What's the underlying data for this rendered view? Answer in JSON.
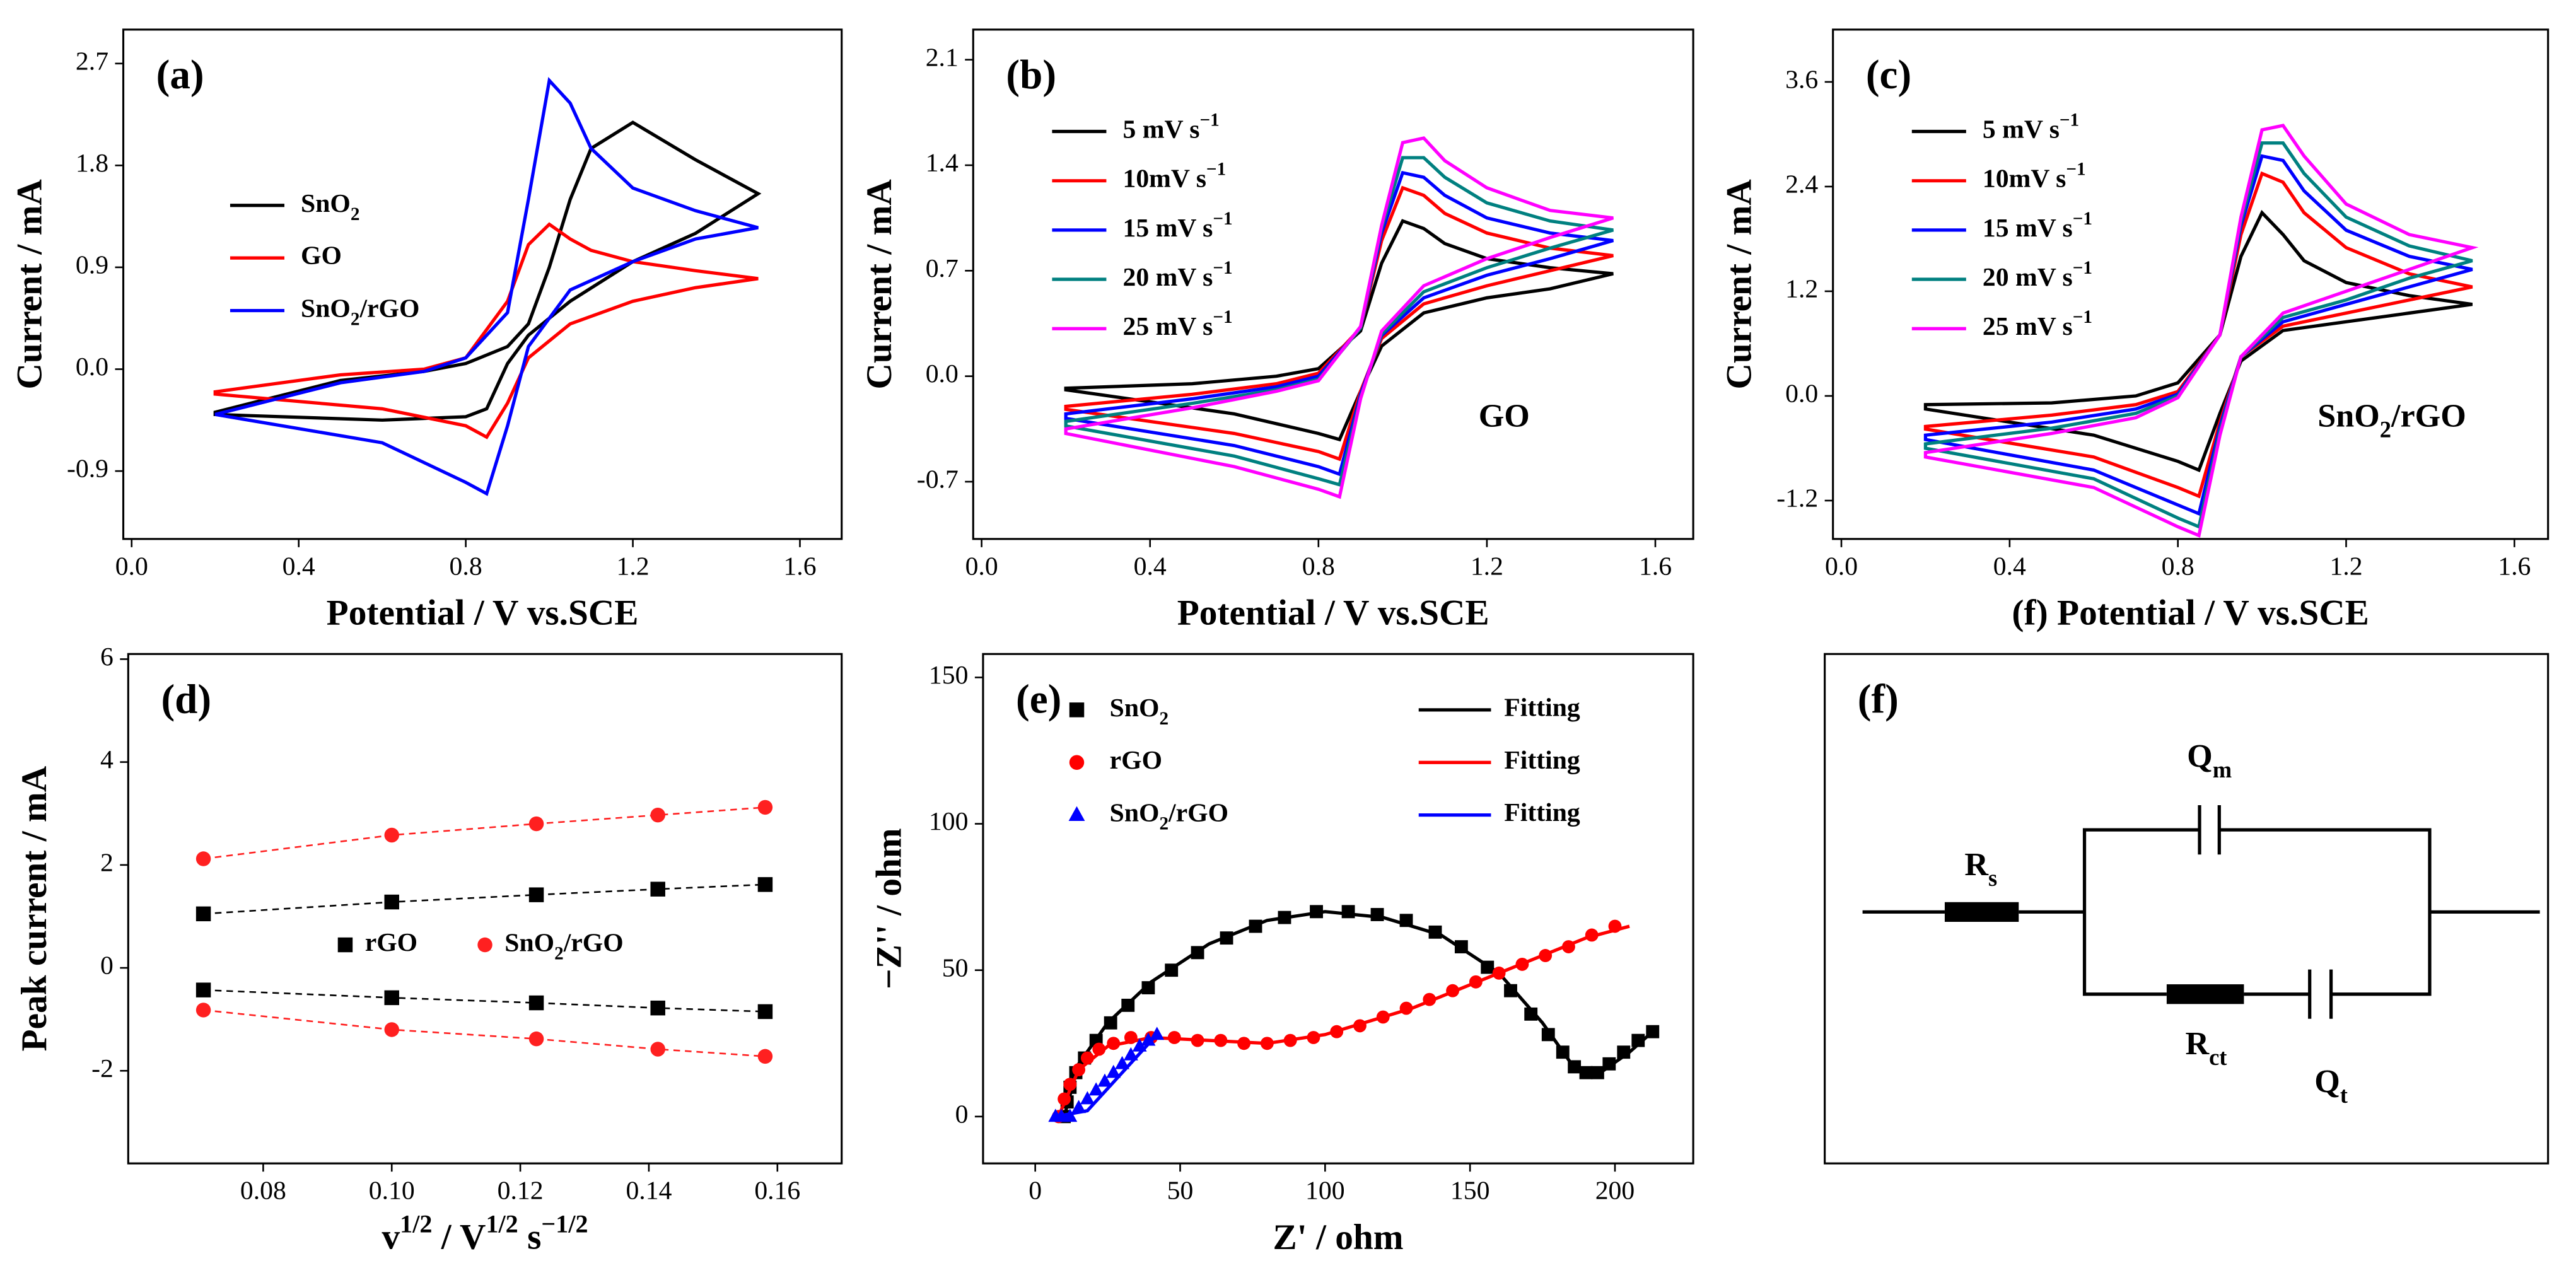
{
  "chart_data": [
    {
      "type": "line",
      "panel_label": "(a)",
      "xlabel": "Potential / V vs.SCE",
      "ylabel": "Current / mA",
      "x": [
        0.2,
        0.5,
        0.7,
        0.8,
        0.9,
        0.95,
        1.0,
        1.05,
        1.1,
        1.2,
        1.35,
        1.5,
        1.35,
        1.2,
        1.05,
        0.95,
        0.9,
        0.85,
        0.8,
        0.6,
        0.2
      ],
      "series": [
        {
          "name": [
            {
              "t": "SnO"
            },
            {
              "sub": "2"
            }
          ],
          "color": "#000000",
          "values": [
            -0.38,
            -0.1,
            -0.02,
            0.05,
            0.2,
            0.4,
            0.9,
            1.5,
            1.95,
            2.18,
            1.85,
            1.55,
            1.2,
            0.95,
            0.6,
            0.3,
            0.05,
            -0.35,
            -0.42,
            -0.45,
            -0.4
          ]
        },
        {
          "name": "GO",
          "color": "#ff0000",
          "values": [
            -0.2,
            -0.05,
            0.0,
            0.1,
            0.6,
            1.1,
            1.28,
            1.15,
            1.05,
            0.95,
            0.87,
            0.8,
            0.72,
            0.6,
            0.4,
            0.1,
            -0.3,
            -0.6,
            -0.5,
            -0.35,
            -0.22
          ]
        },
        {
          "name": [
            {
              "t": "SnO"
            },
            {
              "sub": "2"
            },
            {
              "t": "/rGO"
            }
          ],
          "color": "#0000ff",
          "values": [
            -0.4,
            -0.12,
            -0.02,
            0.1,
            0.5,
            1.5,
            2.55,
            2.35,
            1.95,
            1.6,
            1.4,
            1.25,
            1.15,
            0.95,
            0.7,
            0.2,
            -0.5,
            -1.1,
            -1.0,
            -0.65,
            -0.4
          ]
        }
      ],
      "xlim": [
        -0.02,
        1.7
      ],
      "ylim": [
        -1.5,
        3.0
      ],
      "xticks": [
        {
          "value": 0,
          "label": "0.0"
        },
        0.4,
        0.8,
        1.2,
        1.6
      ],
      "yticks": [
        -0.9,
        {
          "value": 0,
          "label": "0.0"
        },
        0.9,
        1.8,
        2.7
      ]
    },
    {
      "type": "line",
      "panel_label": "(b)",
      "xlabel": "Potential / V vs.SCE",
      "ylabel": "Current / mA",
      "annotation": "GO",
      "x": [
        0.2,
        0.5,
        0.7,
        0.8,
        0.9,
        0.95,
        1.0,
        1.05,
        1.1,
        1.2,
        1.35,
        1.5,
        1.35,
        1.2,
        1.05,
        0.95,
        0.9,
        0.85,
        0.8,
        0.6,
        0.2
      ],
      "series": [
        {
          "name": [
            {
              "t": "5 mV s"
            },
            {
              "sup": "−1"
            }
          ],
          "color": "#000000",
          "values": [
            -0.08,
            -0.05,
            0.0,
            0.05,
            0.3,
            0.75,
            1.03,
            0.98,
            0.88,
            0.78,
            0.72,
            0.68,
            0.58,
            0.52,
            0.42,
            0.2,
            -0.1,
            -0.42,
            -0.38,
            -0.25,
            -0.09
          ]
        },
        {
          "name": [
            {
              "t": "10mV s"
            },
            {
              "sup": "−1"
            }
          ],
          "color": "#ff0000",
          "values": [
            -0.2,
            -0.12,
            -0.05,
            0.02,
            0.32,
            0.9,
            1.25,
            1.2,
            1.08,
            0.95,
            0.85,
            0.8,
            0.7,
            0.6,
            0.48,
            0.25,
            -0.1,
            -0.55,
            -0.5,
            -0.38,
            -0.22
          ]
        },
        {
          "name": [
            {
              "t": "15 mV s"
            },
            {
              "sup": "−1"
            }
          ],
          "color": "#0000ff",
          "values": [
            -0.25,
            -0.15,
            -0.07,
            0.0,
            0.32,
            0.95,
            1.35,
            1.32,
            1.2,
            1.05,
            0.95,
            0.9,
            0.78,
            0.67,
            0.52,
            0.27,
            -0.12,
            -0.65,
            -0.6,
            -0.46,
            -0.28
          ]
        },
        {
          "name": [
            {
              "t": "20 mV s"
            },
            {
              "sup": "−1"
            }
          ],
          "color": "#008080",
          "values": [
            -0.3,
            -0.18,
            -0.09,
            -0.02,
            0.32,
            0.98,
            1.45,
            1.45,
            1.32,
            1.15,
            1.03,
            0.97,
            0.85,
            0.72,
            0.56,
            0.28,
            -0.14,
            -0.72,
            -0.68,
            -0.53,
            -0.33
          ]
        },
        {
          "name": [
            {
              "t": "25 mV s"
            },
            {
              "sup": "−1"
            }
          ],
          "color": "#ff00ff",
          "values": [
            -0.35,
            -0.21,
            -0.1,
            -0.03,
            0.33,
            1.0,
            1.55,
            1.58,
            1.43,
            1.25,
            1.1,
            1.05,
            0.92,
            0.78,
            0.6,
            0.3,
            -0.15,
            -0.8,
            -0.75,
            -0.6,
            -0.38
          ]
        }
      ],
      "xlim": [
        -0.02,
        1.69
      ],
      "ylim": [
        -1.08,
        2.3
      ],
      "xticks": [
        {
          "value": 0,
          "label": "0.0"
        },
        0.4,
        0.8,
        1.2,
        1.6
      ],
      "yticks": [
        -0.7,
        {
          "value": 0,
          "label": "0.0"
        },
        0.7,
        1.4,
        2.1
      ]
    },
    {
      "type": "line",
      "panel_label": "(c)",
      "xlabel": "(f) Potential / V vs.SCE",
      "ylabel": "Current / mA",
      "annotation": [
        {
          "t": "SnO"
        },
        {
          "sub": "2"
        },
        {
          "t": "/rGO"
        }
      ],
      "x": [
        0.2,
        0.5,
        0.7,
        0.8,
        0.9,
        0.95,
        1.0,
        1.05,
        1.1,
        1.2,
        1.35,
        1.5,
        1.35,
        1.2,
        1.05,
        0.95,
        0.9,
        0.85,
        0.8,
        0.6,
        0.2
      ],
      "series": [
        {
          "name": [
            {
              "t": "5 mV s"
            },
            {
              "sup": "−1"
            }
          ],
          "color": "#000000",
          "values": [
            -0.1,
            -0.08,
            0.0,
            0.15,
            0.7,
            1.6,
            2.1,
            1.85,
            1.55,
            1.3,
            1.15,
            1.05,
            0.95,
            0.85,
            0.75,
            0.4,
            -0.2,
            -0.85,
            -0.75,
            -0.45,
            -0.15
          ]
        },
        {
          "name": [
            {
              "t": "10mV s"
            },
            {
              "sup": "−1"
            }
          ],
          "color": "#ff0000",
          "values": [
            -0.35,
            -0.22,
            -0.1,
            0.05,
            0.7,
            1.85,
            2.55,
            2.45,
            2.1,
            1.7,
            1.4,
            1.25,
            1.1,
            0.95,
            0.8,
            0.45,
            -0.3,
            -1.15,
            -1.05,
            -0.7,
            -0.38
          ]
        },
        {
          "name": [
            {
              "t": "15 mV s"
            },
            {
              "sup": "−1"
            }
          ],
          "color": "#0000ff",
          "values": [
            -0.45,
            -0.3,
            -0.15,
            0.02,
            0.7,
            1.95,
            2.75,
            2.7,
            2.35,
            1.9,
            1.6,
            1.45,
            1.25,
            1.05,
            0.85,
            0.45,
            -0.35,
            -1.35,
            -1.25,
            -0.85,
            -0.5
          ]
        },
        {
          "name": [
            {
              "t": "20 mV s"
            },
            {
              "sup": "−1"
            }
          ],
          "color": "#008080",
          "values": [
            -0.55,
            -0.37,
            -0.2,
            0.0,
            0.7,
            2.0,
            2.9,
            2.9,
            2.55,
            2.05,
            1.72,
            1.55,
            1.35,
            1.1,
            0.9,
            0.45,
            -0.4,
            -1.5,
            -1.4,
            -0.95,
            -0.6
          ]
        },
        {
          "name": [
            {
              "t": "25 mV s"
            },
            {
              "sup": "−1"
            }
          ],
          "color": "#ff00ff",
          "values": [
            -0.65,
            -0.43,
            -0.25,
            -0.02,
            0.7,
            2.05,
            3.05,
            3.1,
            2.75,
            2.2,
            1.85,
            1.7,
            1.45,
            1.2,
            0.95,
            0.45,
            -0.45,
            -1.6,
            -1.5,
            -1.05,
            -0.7
          ]
        }
      ],
      "xlim": [
        -0.02,
        1.68
      ],
      "ylim": [
        -1.64,
        4.2
      ],
      "xticks": [
        {
          "value": 0,
          "label": "0.0"
        },
        0.4,
        0.8,
        1.2,
        1.6
      ],
      "yticks": [
        -1.2,
        {
          "value": 0,
          "label": "0.0"
        },
        1.2,
        2.4,
        3.6
      ]
    },
    {
      "type": "peaks",
      "panel_label": "(d)",
      "xlabel": [
        {
          "t": "v"
        },
        {
          "sup": "1/2"
        },
        {
          "t": " / V"
        },
        {
          "sup": "1/2"
        },
        {
          "t": " s"
        },
        {
          "sup": "−1/2"
        }
      ],
      "ylabel": "Peak current / mA",
      "x": [
        0.0707,
        0.1,
        0.1225,
        0.1414,
        0.1581
      ],
      "series": [
        {
          "name": "rGO",
          "color": "#000000",
          "marker": "square",
          "values": [
            [
              1.05,
              1.28,
              1.42,
              1.53,
              1.62
            ],
            [
              -0.43,
              -0.58,
              -0.68,
              -0.78,
              -0.85
            ]
          ]
        },
        {
          "name": [
            {
              "t": "SnO"
            },
            {
              "sub": "2"
            },
            {
              "t": "/rGO"
            }
          ],
          "color": "#ff2020",
          "marker": "circle",
          "values": [
            [
              2.12,
              2.58,
              2.8,
              2.97,
              3.12
            ],
            [
              -0.82,
              -1.2,
              -1.38,
              -1.58,
              -1.72
            ]
          ]
        }
      ],
      "xlim": [
        0.059,
        0.17
      ],
      "ylim": [
        -3.8,
        6.1
      ],
      "xticks": [
        0.08,
        {
          "value": 0.1,
          "label": "0.10"
        },
        0.12,
        0.14,
        0.16
      ],
      "yticks": [
        -2,
        0,
        2,
        4,
        6
      ]
    },
    {
      "type": "scatter",
      "panel_label": "(e)",
      "xlabel": "Z' / ohm",
      "ylabel": "−Z'' / ohm",
      "series": [
        {
          "name": [
            {
              "t": "SnO"
            },
            {
              "sub": "2"
            }
          ],
          "color": "#000000",
          "marker": "square",
          "x": [
            10,
            11,
            12,
            14,
            17,
            21,
            26,
            32,
            39,
            47,
            56,
            66,
            76,
            86,
            97,
            108,
            118,
            128,
            138,
            147,
            156,
            164,
            171,
            177,
            182,
            186,
            190,
            194,
            198,
            203,
            208,
            213
          ],
          "values": [
            0,
            5,
            10,
            15,
            20,
            26,
            32,
            38,
            44,
            50,
            56,
            61,
            65,
            68,
            70,
            70,
            69,
            67,
            63,
            58,
            51,
            43,
            35,
            28,
            22,
            17,
            15,
            15,
            18,
            22,
            26,
            29
          ]
        },
        {
          "name": "Fitting",
          "color": "#000000",
          "x": [
            10,
            15,
            25,
            40,
            60,
            80,
            100,
            120,
            140,
            160,
            175,
            185,
            190,
            195,
            205,
            213
          ],
          "values": [
            0,
            18,
            32,
            46,
            59,
            67,
            70,
            68,
            62,
            49,
            32,
            18,
            14,
            15,
            22,
            29
          ]
        },
        {
          "name": "rGO",
          "color": "#ff0000",
          "marker": "circle",
          "x": [
            8,
            10,
            12,
            15,
            18,
            22,
            27,
            33,
            40,
            48,
            56,
            64,
            72,
            80,
            88,
            96,
            104,
            112,
            120,
            128,
            136,
            144,
            152,
            160,
            168,
            176,
            184,
            192,
            200
          ],
          "values": [
            0,
            6,
            11,
            16,
            20,
            23,
            25,
            27,
            27,
            27,
            26,
            26,
            25,
            25,
            26,
            27,
            29,
            31,
            34,
            37,
            40,
            43,
            46,
            49,
            52,
            55,
            58,
            62,
            65
          ]
        },
        {
          "name": "Fitting",
          "color": "#ff0000",
          "x": [
            8,
            15,
            25,
            40,
            60,
            80,
            100,
            130,
            160,
            190,
            205
          ],
          "values": [
            0,
            16,
            24,
            27,
            26,
            25,
            28,
            37,
            49,
            61,
            65
          ]
        },
        {
          "name": [
            {
              "t": "SnO"
            },
            {
              "sub": "2"
            },
            {
              "t": "/rGO"
            }
          ],
          "color": "#0000ff",
          "marker": "triangle",
          "x": [
            7,
            9,
            12,
            15,
            18,
            21,
            24,
            27,
            30,
            33,
            36,
            39,
            42
          ],
          "values": [
            0,
            0,
            0,
            3,
            6,
            9,
            12,
            15,
            18,
            21,
            24,
            26,
            28
          ]
        },
        {
          "name": "Fitting",
          "color": "#0000ff",
          "x": [
            7,
            18,
            42
          ],
          "values": [
            0,
            2,
            28
          ]
        }
      ],
      "xlim": [
        -18,
        227
      ],
      "ylim": [
        -16,
        158
      ],
      "xticks": [
        0,
        50,
        100,
        150,
        200
      ],
      "yticks": [
        0,
        50,
        100,
        150
      ]
    },
    {
      "type": "circuit",
      "panel_label": "(f)",
      "components": [
        [
          {
            "t": "R"
          },
          {
            "sub": "s"
          }
        ],
        [
          {
            "t": "Q"
          },
          {
            "sub": "m"
          }
        ],
        [
          {
            "t": "R"
          },
          {
            "sub": "ct"
          }
        ],
        [
          {
            "t": "Q"
          },
          {
            "sub": "t"
          }
        ]
      ]
    }
  ]
}
